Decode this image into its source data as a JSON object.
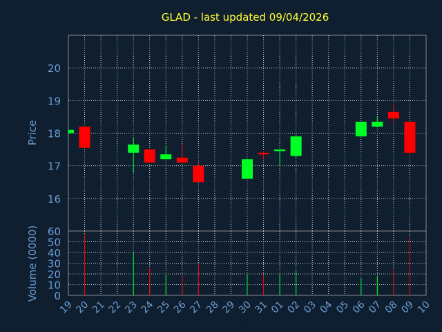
{
  "chart_data": {
    "type": "candlestick",
    "title": "GLAD - last updated 09/04/2026",
    "xlabel": "Day",
    "ylabel_price": "Price",
    "ylabel_volume": "Volume (0000)",
    "x_ticks": [
      "19",
      "20",
      "21",
      "22",
      "23",
      "24",
      "25",
      "26",
      "27",
      "28",
      "29",
      "30",
      "31",
      "01",
      "02",
      "03",
      "04",
      "05",
      "06",
      "07",
      "08",
      "09",
      "10"
    ],
    "price_ylim": [
      15,
      21
    ],
    "price_yticks": [
      "16",
      "17",
      "18",
      "19",
      "20"
    ],
    "volume_ylim": [
      0,
      60
    ],
    "volume_yticks": [
      "0",
      "10",
      "20",
      "30",
      "40",
      "50",
      "60"
    ],
    "grid": true,
    "colors": {
      "background": "#0f1f30",
      "title": "#ffff33",
      "axis_label": "#6a9ed4",
      "up": "#00ff22",
      "down": "#ff0000",
      "grid": "#ffffff"
    },
    "candles": [
      {
        "day": "19",
        "open": 18.0,
        "high": 18.1,
        "low": 18.0,
        "close": 18.1
      },
      {
        "day": "20",
        "open": 18.2,
        "high": 18.2,
        "low": 17.55,
        "close": 17.55
      },
      {
        "day": "23",
        "open": 17.4,
        "high": 17.85,
        "low": 16.8,
        "close": 17.65
      },
      {
        "day": "24",
        "open": 17.5,
        "high": 17.5,
        "low": 17.1,
        "close": 17.1
      },
      {
        "day": "25",
        "open": 17.2,
        "high": 17.6,
        "low": 17.2,
        "close": 17.35
      },
      {
        "day": "26",
        "open": 17.25,
        "high": 17.65,
        "low": 17.1,
        "close": 17.1
      },
      {
        "day": "27",
        "open": 17.0,
        "high": 17.1,
        "low": 16.5,
        "close": 16.5
      },
      {
        "day": "30",
        "open": 16.6,
        "high": 17.2,
        "low": 16.6,
        "close": 17.2
      },
      {
        "day": "31",
        "open": 17.4,
        "high": 17.45,
        "low": 17.2,
        "close": 17.35
      },
      {
        "day": "01",
        "open": 17.45,
        "high": 17.5,
        "low": 17.0,
        "close": 17.5
      },
      {
        "day": "02",
        "open": 17.3,
        "high": 17.95,
        "low": 17.25,
        "close": 17.9
      },
      {
        "day": "06",
        "open": 17.9,
        "high": 18.35,
        "low": 17.9,
        "close": 18.35
      },
      {
        "day": "07",
        "open": 18.2,
        "high": 18.5,
        "low": 18.2,
        "close": 18.35
      },
      {
        "day": "08",
        "open": 18.65,
        "high": 18.9,
        "low": 18.3,
        "close": 18.45
      },
      {
        "day": "09",
        "open": 18.35,
        "high": 18.35,
        "low": 17.35,
        "close": 17.4
      }
    ],
    "volume": [
      {
        "day": "20",
        "value": 57
      },
      {
        "day": "23",
        "value": 40
      },
      {
        "day": "24",
        "value": 26
      },
      {
        "day": "25",
        "value": 19
      },
      {
        "day": "26",
        "value": 18
      },
      {
        "day": "27",
        "value": 29
      },
      {
        "day": "30",
        "value": 20
      },
      {
        "day": "31",
        "value": 19
      },
      {
        "day": "01",
        "value": 20
      },
      {
        "day": "02",
        "value": 23
      },
      {
        "day": "06",
        "value": 16
      },
      {
        "day": "07",
        "value": 18
      },
      {
        "day": "08",
        "value": 24
      },
      {
        "day": "09",
        "value": 54
      }
    ]
  }
}
